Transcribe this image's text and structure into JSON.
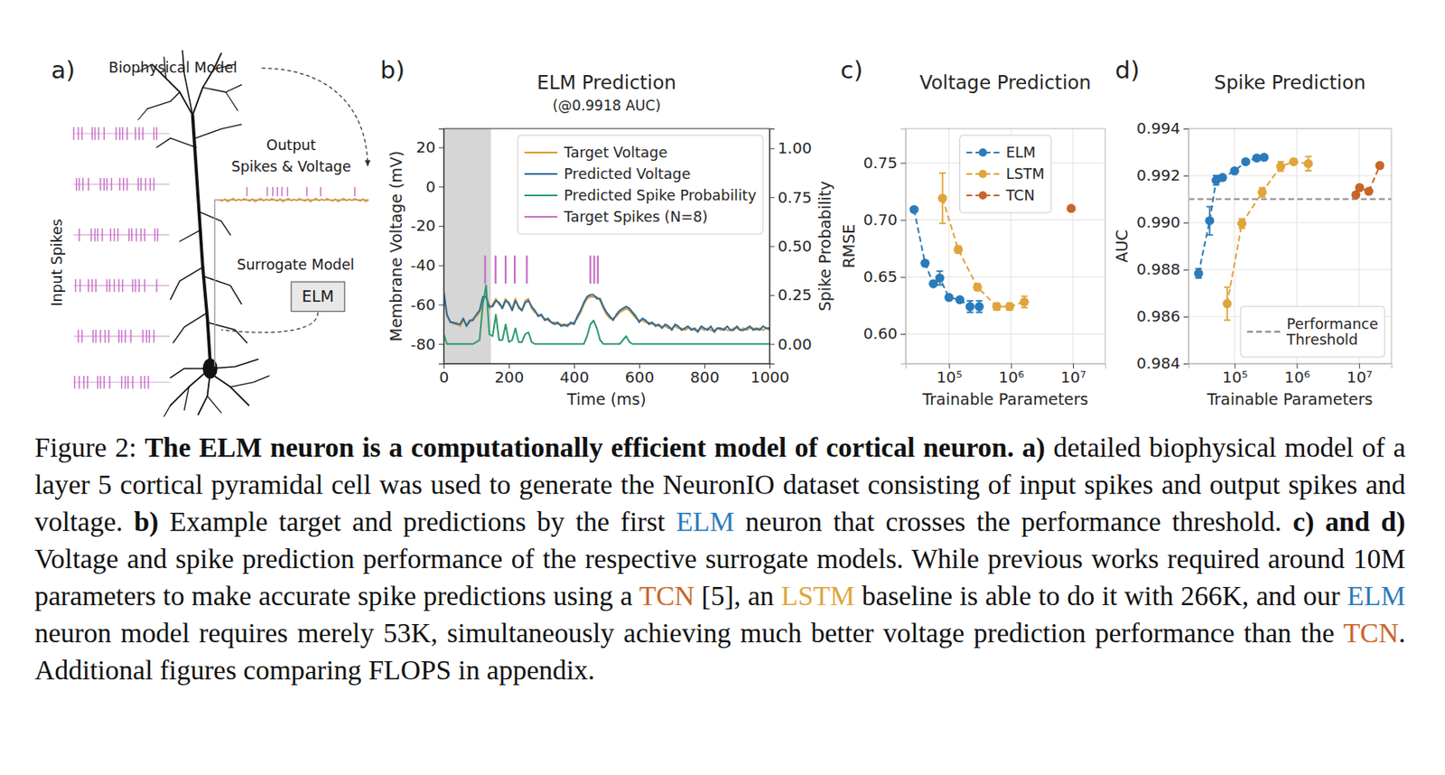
{
  "diagram": {
    "panel": "a)",
    "title": "Biophysical Model",
    "output_label": [
      "Output",
      "Spikes & Voltage"
    ],
    "surrogate_label": "Surrogate Model",
    "model_box": "ELM",
    "input_label": "Input Spikes"
  },
  "chart_data": [
    {
      "type": "line",
      "panel": "b)",
      "title": "ELM Prediction",
      "subtitle": "(@0.9918 AUC)",
      "xlabel": "Time (ms)",
      "ylabel": "Membrane Voltage (mV)",
      "y2label": "Spike Probability",
      "grid": false,
      "legend": "upper right",
      "xlim": [
        0,
        1000
      ],
      "xticks": [
        0,
        200,
        400,
        600,
        800,
        1000
      ],
      "ylim": [
        -90,
        29.5
      ],
      "yticks": [
        -80,
        -60,
        -40,
        -20,
        0,
        20
      ],
      "y2lim": [
        -0.1,
        1.1
      ],
      "y2ticks": [
        {
          "value": 0,
          "label": "0.00"
        },
        0.25,
        {
          "value": 0.5,
          "label": "0.50"
        },
        0.75,
        {
          "value": 1,
          "label": "1.00"
        }
      ],
      "shaded_x": [
        0,
        145
      ],
      "x": [
        0,
        10,
        20,
        30,
        40,
        50,
        60,
        70,
        80,
        90,
        100,
        110,
        120,
        130,
        140,
        150,
        160,
        170,
        180,
        190,
        200,
        210,
        220,
        230,
        240,
        250,
        260,
        270,
        280,
        290,
        300,
        310,
        320,
        330,
        340,
        350,
        360,
        370,
        380,
        390,
        400,
        410,
        420,
        430,
        440,
        450,
        460,
        470,
        480,
        490,
        500,
        510,
        520,
        530,
        540,
        550,
        560,
        570,
        580,
        590,
        600,
        610,
        620,
        630,
        640,
        650,
        660,
        670,
        680,
        690,
        700,
        710,
        720,
        730,
        740,
        750,
        760,
        770,
        780,
        790,
        800,
        810,
        820,
        830,
        840,
        850,
        860,
        870,
        880,
        890,
        900,
        910,
        920,
        930,
        940,
        950,
        960,
        970,
        980,
        990,
        1000
      ],
      "series": [
        {
          "name": "Target Voltage",
          "color": "#dc9a2e",
          "values": [
            -55,
            -66,
            -68,
            -70,
            -69,
            -71,
            -68,
            -70,
            -69,
            -67,
            -66,
            -64,
            -58,
            -55,
            -62,
            -60,
            -57,
            -60,
            -61,
            -57,
            -60,
            -62,
            -57,
            -62,
            -63,
            -58,
            -57,
            -62,
            -64,
            -65,
            -66,
            -67,
            -68,
            -69,
            -69,
            -70,
            -70,
            -71,
            -70,
            -70,
            -69,
            -67,
            -64,
            -60,
            -57,
            -56,
            -56,
            -56,
            -58,
            -62,
            -65,
            -67,
            -67,
            -66,
            -64,
            -63,
            -62,
            -63,
            -65,
            -67,
            -68,
            -68,
            -69,
            -69,
            -70,
            -70,
            -71,
            -71,
            -71,
            -72,
            -72,
            -71,
            -72,
            -72,
            -73,
            -72,
            -72,
            -73,
            -73,
            -72,
            -73,
            -72,
            -73,
            -73,
            -72,
            -73,
            -72,
            -73,
            -73,
            -72,
            -72,
            -73,
            -72,
            -73,
            -72,
            -72,
            -73,
            -72,
            -73,
            -72,
            -73
          ]
        },
        {
          "name": "Predicted Voltage",
          "color": "#2d6a9f",
          "values": [
            -53,
            -65,
            -69,
            -69,
            -70,
            -70,
            -67,
            -71,
            -68,
            -68,
            -65,
            -63,
            -56,
            -56,
            -61,
            -61,
            -58,
            -59,
            -62,
            -58,
            -59,
            -63,
            -58,
            -61,
            -63,
            -59,
            -58,
            -61,
            -63,
            -66,
            -65,
            -68,
            -67,
            -69,
            -70,
            -69,
            -71,
            -70,
            -71,
            -69,
            -70,
            -66,
            -63,
            -59,
            -56,
            -55,
            -55,
            -57,
            -57,
            -61,
            -64,
            -66,
            -68,
            -65,
            -63,
            -62,
            -61,
            -62,
            -64,
            -66,
            -69,
            -67,
            -68,
            -70,
            -69,
            -71,
            -70,
            -72,
            -70,
            -71,
            -73,
            -70,
            -71,
            -73,
            -72,
            -71,
            -73,
            -72,
            -74,
            -71,
            -72,
            -73,
            -71,
            -74,
            -72,
            -72,
            -73,
            -71,
            -73,
            -73,
            -71,
            -73,
            -73,
            -72,
            -71,
            -73,
            -72,
            -73,
            -71,
            -72,
            -72
          ]
        },
        {
          "name": "Predicted Spike Probability",
          "color": "#2e9b6b",
          "axis": "y2",
          "values": [
            0.05,
            0,
            0,
            0,
            0,
            0,
            0,
            0,
            0,
            0,
            0.01,
            0.02,
            0.2,
            0.3,
            0.05,
            0.04,
            0.15,
            0.02,
            0.02,
            0.1,
            0.01,
            0.02,
            0.08,
            0.01,
            0.01,
            0.05,
            0.06,
            0.01,
            0,
            0,
            0,
            0,
            0,
            0,
            0,
            0,
            0,
            0,
            0,
            0,
            0,
            0,
            0,
            0,
            0.04,
            0.1,
            0.12,
            0.08,
            0.02,
            0,
            0,
            0,
            0,
            0,
            0,
            0.02,
            0.04,
            0.01,
            0,
            0,
            0,
            0,
            0,
            0,
            0,
            0,
            0,
            0,
            0,
            0,
            0,
            0,
            0,
            0,
            0,
            0,
            0,
            0,
            0,
            0,
            0,
            0,
            0,
            0,
            0,
            0,
            0,
            0,
            0,
            0,
            0,
            0,
            0,
            0,
            0,
            0,
            0,
            0,
            0,
            0,
            0
          ]
        },
        {
          "name": "Target Spikes (N=8)",
          "color": "#c86fc6",
          "type": "event",
          "x": [
            127,
            159,
            190,
            218,
            255,
            450,
            462,
            473
          ]
        }
      ]
    },
    {
      "type": "line",
      "panel": "c)",
      "title": "Voltage Prediction",
      "xlabel": "Trainable Parameters",
      "ylabel": "RMSE",
      "log": "x",
      "grid": true,
      "legend": "upper center",
      "xlim": [
        20000,
        33000000
      ],
      "xticks": [
        {
          "value": 100000,
          "label": "10⁵"
        },
        {
          "value": 1000000,
          "label": "10⁶"
        },
        {
          "value": 10000000,
          "label": "10⁷"
        }
      ],
      "ylim": [
        0.574,
        0.78
      ],
      "yticks": [
        {
          "value": 0.6,
          "label": "0.60"
        },
        0.65,
        {
          "value": 0.7,
          "label": "0.70"
        },
        0.75
      ],
      "series": [
        {
          "name": "ELM",
          "color": "#2b7bba",
          "marker": "circle",
          "line_style": "dashed",
          "x": [
            27400,
            41200,
            56000,
            71100,
            100000,
            150000,
            219000,
            308000
          ],
          "values": [
            0.709,
            0.662,
            0.644,
            0.649,
            0.632,
            0.63,
            0.624,
            0.624
          ],
          "errors": [
            0.002,
            0.002,
            0.002,
            0.006,
            0.002,
            0.002,
            0.005,
            0.005
          ]
        },
        {
          "name": "LSTM",
          "color": "#e0a43a",
          "marker": "circle",
          "line_style": "dashed",
          "x": [
            78700,
            141000,
            288000,
            589000,
            951000,
            1640000
          ],
          "values": [
            0.719,
            0.674,
            0.641,
            0.624,
            0.624,
            0.628
          ],
          "errors": [
            0.022,
            0.003,
            0.003,
            0.003,
            0.003,
            0.005
          ]
        },
        {
          "name": "TCN",
          "color": "#c8652a",
          "marker": "circle",
          "line_style": "dashed",
          "x": [
            9330000
          ],
          "values": [
            0.71
          ],
          "errors": [
            0
          ]
        }
      ]
    },
    {
      "type": "line",
      "panel": "d)",
      "title": "Spike Prediction",
      "xlabel": "Trainable Parameters",
      "ylabel": "AUC",
      "log": "x",
      "grid": true,
      "legend": "lower right",
      "xlim": [
        18200,
        33000000
      ],
      "xticks": [
        {
          "value": 100000,
          "label": "10⁵"
        },
        {
          "value": 1000000,
          "label": "10⁶"
        },
        {
          "value": 10000000,
          "label": "10⁷"
        }
      ],
      "ylim": [
        0.984,
        0.994
      ],
      "yticks": [
        0.984,
        0.986,
        0.988,
        {
          "value": 0.99,
          "label": "0.990"
        },
        0.992,
        0.994
      ],
      "reference_lines": [
        {
          "name": "Performance Threshold",
          "value": 0.991,
          "color": "#8c8c8c",
          "line_style": "dashed"
        }
      ],
      "series": [
        {
          "color": "#2b7bba",
          "marker": "circle",
          "line_style": "dashed",
          "x": [
            26400,
            39800,
            50600,
            64100,
            100000,
            151000,
            227000,
            298000
          ],
          "values": [
            0.98784,
            0.99008,
            0.9918,
            0.99192,
            0.9922,
            0.99259,
            0.99275,
            0.99278
          ],
          "errors": [
            0.0002,
            0.0006,
            0.0002,
            0.0001,
            0.0001,
            0.0001,
            0.0001,
            0.0001
          ]
        },
        {
          "color": "#e0a43a",
          "marker": "circle",
          "line_style": "dashed",
          "x": [
            76100,
            131000,
            278000,
            550000,
            888000,
            1530000
          ],
          "values": [
            0.98655,
            0.98996,
            0.99129,
            0.99239,
            0.99259,
            0.99251
          ],
          "errors": [
            0.0007,
            0.0002,
            0.0002,
            0.0002,
            0.0001,
            0.0003
          ]
        },
        {
          "color": "#c8652a",
          "marker": "circle",
          "line_style": "dashed",
          "x": [
            8870000,
            10200000,
            14300000,
            21500000
          ],
          "values": [
            0.99118,
            0.99149,
            0.99133,
            0.99243
          ],
          "errors": [
            0.0001,
            0.0001,
            0.0001,
            0.0001
          ]
        }
      ]
    }
  ],
  "figure": {
    "caption": [
      {
        "text": "Figure 2: "
      },
      {
        "text": "The ELM neuron is a computationally efficient model of cortical neuron.",
        "bold": true
      },
      {
        "text": " "
      },
      {
        "text": "a)",
        "bold": true
      },
      {
        "text": " detailed biophysical model of a layer 5 cortical pyramidal cell was used to generate the NeuronIO dataset consisting of input spikes and output spikes and voltage. "
      },
      {
        "text": "b)",
        "bold": true
      },
      {
        "text": " Example target and predictions by the first "
      },
      {
        "text": "ELM",
        "color": "#2b7bba"
      },
      {
        "text": " neuron that crosses the performance threshold. "
      },
      {
        "text": "c) and d)",
        "bold": true
      },
      {
        "text": " Voltage and spike prediction performance of the respective surrogate models. While previous works required around 10M parameters to make accurate spike predictions using a "
      },
      {
        "text": "TCN",
        "color": "#c8652a"
      },
      {
        "text": " [5], an "
      },
      {
        "text": "LSTM",
        "color": "#e0a43a"
      },
      {
        "text": " baseline is able to do it with 266K, and our "
      },
      {
        "text": "ELM",
        "color": "#2b7bba"
      },
      {
        "text": " neuron model requires merely 53K, simultaneously achieving much better voltage prediction performance than the "
      },
      {
        "text": "TCN",
        "color": "#c8652a"
      },
      {
        "text": ". Additional figures comparing FLOPS in appendix."
      }
    ]
  }
}
